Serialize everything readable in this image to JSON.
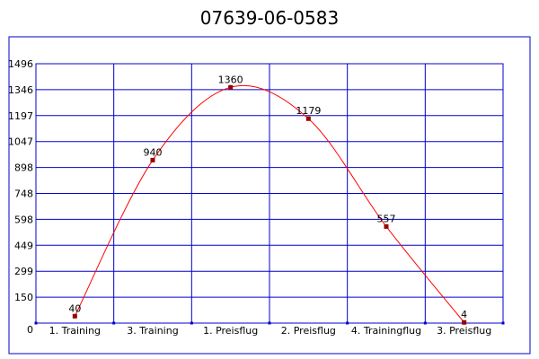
{
  "chart_data": {
    "type": "line",
    "title": "07639-06-0583",
    "categories": [
      "1. Training",
      "3. Training",
      "1. Preisflug",
      "2. Preisflug",
      "4. Trainingflug",
      "3. Preisflug"
    ],
    "series": [
      {
        "values": [
          40,
          940,
          1360,
          1179,
          557,
          4
        ]
      }
    ],
    "y_ticks": [
      "0",
      "150",
      "299",
      "449",
      "598",
      "748",
      "898",
      "1047",
      "1197",
      "1346",
      "1496"
    ],
    "ylim": [
      0,
      1496
    ],
    "grid": true,
    "line_color": "#ff0000",
    "marker_color": "#990000",
    "grid_color": "#0000cc",
    "border_color": "#0000cc"
  }
}
